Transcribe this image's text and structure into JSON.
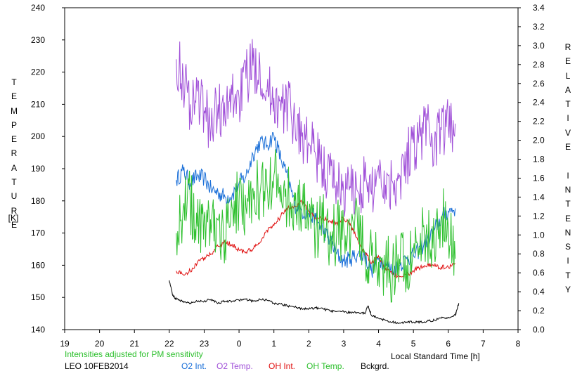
{
  "chart_data": {
    "type": "line",
    "left_axis": {
      "label": "TEMPERATURE",
      "unit": "[K]",
      "range": [
        140,
        240
      ],
      "ticks": [
        "140",
        "150",
        "160",
        "170",
        "180",
        "190",
        "200",
        "210",
        "220",
        "230",
        "240"
      ]
    },
    "right_axis": {
      "label": "RELATIVE INTENSITY",
      "range": [
        0.0,
        3.4
      ],
      "ticks": [
        "0.0",
        "0.2",
        "0.4",
        "0.6",
        "0.8",
        "1.0",
        "1.2",
        "1.4",
        "1.6",
        "1.8",
        "2.0",
        "2.2",
        "2.4",
        "2.6",
        "2.8",
        "3.0",
        "3.2",
        "3.4"
      ]
    },
    "x_axis": {
      "label": "Local Standard Time [h]",
      "ticks": [
        "19",
        "20",
        "21",
        "22",
        "23",
        "0",
        "1",
        "2",
        "3",
        "4",
        "5",
        "6",
        "7",
        "8"
      ]
    },
    "note": "Intensities adjusted for PM sensitivity",
    "station": "LEO 10FEB2014",
    "grid": false,
    "legend_position": "bottom",
    "series": [
      {
        "name": "O2 Int.",
        "axis": "right",
        "color": "#1a6fd8",
        "x": [
          22.2,
          22.4,
          22.6,
          22.8,
          23.0,
          23.2,
          23.4,
          23.6,
          23.8,
          24.0,
          24.2,
          24.4,
          24.6,
          24.8,
          25.0,
          25.2,
          25.4,
          25.6,
          25.8,
          26.0,
          26.2,
          26.4,
          26.6,
          26.8,
          27.0,
          27.2,
          27.4,
          27.6,
          27.8,
          28.0,
          28.2,
          28.4,
          28.6,
          28.8,
          29.0,
          29.2,
          29.4,
          29.6,
          29.8,
          30.0,
          30.2
        ],
        "values": [
          1.58,
          1.68,
          1.55,
          1.62,
          1.6,
          1.48,
          1.45,
          1.4,
          1.42,
          1.55,
          1.62,
          1.85,
          1.98,
          1.95,
          2.05,
          1.8,
          1.6,
          1.32,
          1.25,
          1.22,
          1.18,
          1.05,
          0.95,
          0.8,
          0.72,
          0.75,
          0.8,
          0.78,
          0.62,
          0.75,
          0.7,
          0.62,
          0.68,
          0.75,
          0.78,
          0.85,
          0.95,
          1.05,
          1.18,
          1.25,
          1.28
        ]
      },
      {
        "name": "O2 Temp.",
        "axis": "left",
        "color": "#a050d8",
        "x": [
          22.2,
          22.4,
          22.6,
          22.8,
          23.0,
          23.2,
          23.4,
          23.6,
          23.8,
          24.0,
          24.2,
          24.4,
          24.6,
          24.8,
          25.0,
          25.2,
          25.4,
          25.6,
          25.8,
          26.0,
          26.2,
          26.4,
          26.6,
          26.8,
          27.0,
          27.2,
          27.4,
          27.6,
          27.8,
          28.0,
          28.2,
          28.4,
          28.6,
          28.8,
          29.0,
          29.2,
          29.4,
          29.6,
          29.8,
          30.0,
          30.2
        ],
        "values": [
          224,
          218,
          210,
          214,
          208,
          203,
          210,
          205,
          213,
          212,
          218,
          222,
          222,
          214,
          212,
          208,
          210,
          205,
          200,
          198,
          194,
          190,
          188,
          186,
          183,
          184,
          183,
          186,
          182,
          191,
          185,
          186,
          188,
          193,
          198,
          200,
          205,
          196,
          202,
          203,
          204
        ]
      },
      {
        "name": "OH Int.",
        "axis": "right",
        "color": "#e01010",
        "x": [
          22.2,
          22.4,
          22.6,
          22.8,
          23.0,
          23.2,
          23.4,
          23.6,
          23.8,
          24.0,
          24.2,
          24.4,
          24.6,
          24.8,
          25.0,
          25.2,
          25.4,
          25.6,
          25.8,
          26.0,
          26.2,
          26.4,
          26.6,
          26.8,
          27.0,
          27.2,
          27.4,
          27.6,
          27.8,
          28.0,
          28.2,
          28.4,
          28.6,
          28.8,
          29.0,
          29.2,
          29.4,
          29.6,
          29.8,
          30.0,
          30.2
        ],
        "values": [
          0.62,
          0.58,
          0.62,
          0.7,
          0.76,
          0.8,
          0.88,
          0.92,
          0.9,
          0.84,
          0.82,
          0.85,
          0.92,
          1.05,
          1.1,
          1.2,
          1.28,
          1.3,
          1.35,
          1.25,
          1.18,
          1.18,
          1.15,
          1.12,
          1.18,
          1.1,
          0.95,
          0.82,
          0.7,
          0.78,
          0.65,
          0.58,
          0.56,
          0.58,
          0.62,
          0.66,
          0.68,
          0.67,
          0.66,
          0.66,
          0.7
        ]
      },
      {
        "name": "OH Temp.",
        "axis": "left",
        "color": "#2ec02e",
        "x": [
          22.2,
          22.4,
          22.6,
          22.8,
          23.0,
          23.2,
          23.4,
          23.6,
          23.8,
          24.0,
          24.2,
          24.4,
          24.6,
          24.8,
          25.0,
          25.2,
          25.4,
          25.6,
          25.8,
          26.0,
          26.2,
          26.4,
          26.6,
          26.8,
          27.0,
          27.2,
          27.4,
          27.6,
          27.8,
          28.0,
          28.2,
          28.4,
          28.6,
          28.8,
          29.0,
          29.2,
          29.4,
          29.6,
          29.8,
          30.0,
          30.2
        ],
        "values": [
          170,
          178,
          180,
          172,
          175,
          170,
          174,
          168,
          178,
          180,
          178,
          184,
          182,
          185,
          188,
          185,
          181,
          180,
          178,
          174,
          170,
          173,
          168,
          170,
          172,
          168,
          172,
          164,
          163,
          161,
          160,
          158,
          162,
          160,
          165,
          170,
          168,
          166,
          175,
          172,
          162
        ]
      },
      {
        "name": "Bckgrd.",
        "axis": "right",
        "color": "#000000",
        "x": [
          22.0,
          22.1,
          22.2,
          22.4,
          22.6,
          22.8,
          23.0,
          23.2,
          23.4,
          23.6,
          23.8,
          24.0,
          24.2,
          24.4,
          24.6,
          24.8,
          25.0,
          25.2,
          25.4,
          25.6,
          25.8,
          26.0,
          26.2,
          26.4,
          26.6,
          26.8,
          27.0,
          27.2,
          27.4,
          27.6,
          27.7,
          27.8,
          28.0,
          28.2,
          28.4,
          28.6,
          28.8,
          29.0,
          29.2,
          29.4,
          29.6,
          29.8,
          30.0,
          30.2,
          30.3
        ],
        "values": [
          0.52,
          0.36,
          0.32,
          0.3,
          0.28,
          0.3,
          0.3,
          0.32,
          0.28,
          0.3,
          0.3,
          0.31,
          0.32,
          0.3,
          0.32,
          0.31,
          0.28,
          0.27,
          0.25,
          0.24,
          0.22,
          0.22,
          0.23,
          0.22,
          0.2,
          0.19,
          0.19,
          0.18,
          0.18,
          0.17,
          0.25,
          0.15,
          0.12,
          0.1,
          0.08,
          0.07,
          0.08,
          0.08,
          0.08,
          0.09,
          0.1,
          0.12,
          0.13,
          0.15,
          0.28
        ]
      }
    ]
  }
}
